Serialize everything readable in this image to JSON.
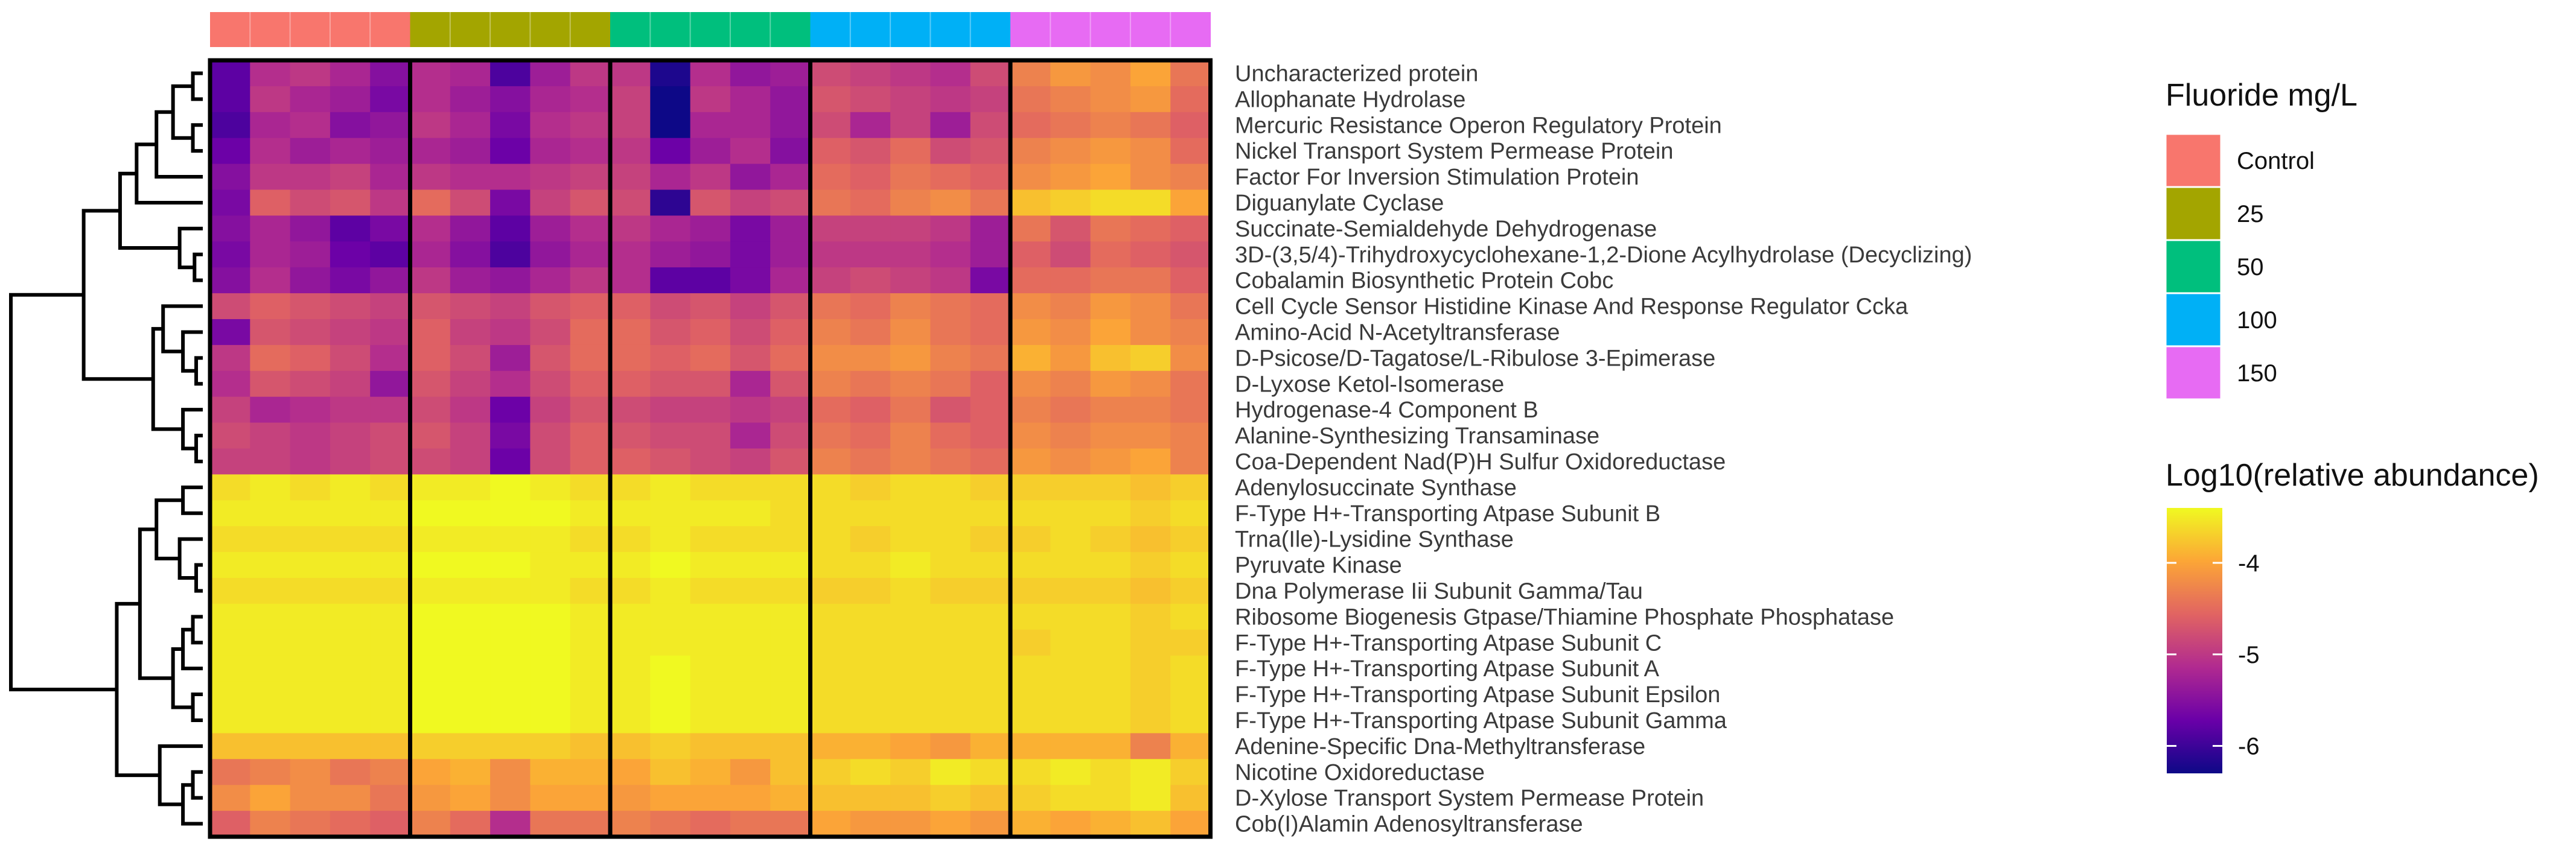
{
  "chart_data": {
    "type": "heatmap",
    "title": "",
    "groups": [
      {
        "name": "Control",
        "color": "#F8766D",
        "columns": 5
      },
      {
        "name": "25",
        "color": "#A3A500",
        "columns": 5
      },
      {
        "name": "50",
        "color": "#00BF7D",
        "columns": 5
      },
      {
        "name": "100",
        "color": "#00B0F6",
        "columns": 5
      },
      {
        "name": "150",
        "color": "#E76BF3",
        "columns": 5
      }
    ],
    "rows": [
      "Uncharacterized protein",
      "Allophanate Hydrolase",
      "Mercuric Resistance Operon Regulatory Protein",
      "Nickel Transport System Permease Protein",
      "Factor For Inversion Stimulation Protein",
      "Diguanylate Cyclase",
      "Succinate-Semialdehyde Dehydrogenase",
      "3D-(3,5/4)-Trihydroxycyclohexane-1,2-Dione Acylhydrolase (Decyclizing)",
      "Cobalamin Biosynthetic Protein Cobc",
      "Cell Cycle Sensor Histidine Kinase And Response Regulator Ccka",
      "Amino-Acid N-Acetyltransferase",
      "D-Psicose/D-Tagatose/L-Ribulose 3-Epimerase",
      "D-Lyxose Ketol-Isomerase",
      "Hydrogenase-4 Component B",
      "Alanine-Synthesizing Transaminase",
      "Coa-Dependent Nad(P)H Sulfur Oxidoreductase",
      "Adenylosuccinate Synthase",
      "F-Type H+-Transporting Atpase Subunit B",
      "Trna(Ile)-Lysidine Synthase",
      "Pyruvate Kinase",
      "Dna Polymerase Iii Subunit Gamma/Tau",
      "Ribosome Biogenesis Gtpase/Thiamine Phosphate Phosphatase",
      "F-Type H+-Transporting Atpase Subunit C",
      "F-Type H+-Transporting Atpase Subunit A",
      "F-Type H+-Transporting Atpase Subunit Epsilon",
      "F-Type H+-Transporting Atpase Subunit Gamma",
      "Adenine-Specific Dna-Methyltransferase",
      "Nicotine Oxidoreductase",
      "D-Xylose Transport System Permease Protein",
      "Cob(I)Alamin Adenosyltransferase"
    ],
    "values": [
      [
        -5.8,
        -5.1,
        -5.0,
        -5.2,
        -5.5,
        -5.1,
        -5.2,
        -5.9,
        -5.3,
        -5.0,
        -5.0,
        -6.2,
        -5.1,
        -5.4,
        -5.3,
        -4.8,
        -4.9,
        -5.0,
        -5.1,
        -4.8,
        -4.3,
        -4.1,
        -4.2,
        -4.0,
        -4.4
      ],
      [
        -5.8,
        -5.0,
        -5.2,
        -5.3,
        -5.6,
        -5.1,
        -5.3,
        -5.5,
        -5.2,
        -5.1,
        -4.9,
        -6.3,
        -5.0,
        -5.2,
        -5.4,
        -4.7,
        -4.8,
        -4.9,
        -5.0,
        -4.9,
        -4.4,
        -4.3,
        -4.2,
        -4.1,
        -4.5
      ],
      [
        -5.9,
        -5.2,
        -5.1,
        -5.5,
        -5.4,
        -5.0,
        -5.2,
        -5.6,
        -5.1,
        -5.0,
        -4.9,
        -6.4,
        -5.2,
        -5.2,
        -5.4,
        -4.8,
        -5.2,
        -4.9,
        -5.3,
        -4.8,
        -4.5,
        -4.4,
        -4.3,
        -4.4,
        -4.6
      ],
      [
        -5.7,
        -5.1,
        -5.3,
        -5.2,
        -5.3,
        -5.2,
        -5.3,
        -5.7,
        -5.2,
        -5.1,
        -5.0,
        -5.7,
        -5.3,
        -5.1,
        -5.5,
        -4.6,
        -4.7,
        -4.5,
        -4.8,
        -4.7,
        -4.3,
        -4.2,
        -4.1,
        -4.2,
        -4.5
      ],
      [
        -5.5,
        -5.0,
        -5.0,
        -4.9,
        -5.2,
        -5.0,
        -5.1,
        -5.1,
        -5.0,
        -4.9,
        -4.9,
        -5.2,
        -5.0,
        -5.4,
        -5.2,
        -4.5,
        -4.6,
        -4.4,
        -4.5,
        -4.6,
        -4.2,
        -4.1,
        -4.0,
        -4.2,
        -4.3
      ],
      [
        -5.6,
        -4.6,
        -4.8,
        -4.7,
        -5.0,
        -4.5,
        -4.8,
        -5.6,
        -4.9,
        -4.7,
        -4.8,
        -6.1,
        -4.7,
        -4.9,
        -4.8,
        -4.4,
        -4.5,
        -4.3,
        -4.2,
        -4.4,
        -3.8,
        -3.7,
        -3.6,
        -3.6,
        -4.0
      ],
      [
        -5.5,
        -5.2,
        -5.4,
        -5.8,
        -5.6,
        -5.1,
        -5.4,
        -5.8,
        -5.3,
        -5.1,
        -5.0,
        -5.2,
        -5.3,
        -5.6,
        -5.3,
        -4.9,
        -4.9,
        -4.9,
        -5.0,
        -5.3,
        -4.4,
        -4.7,
        -4.4,
        -4.5,
        -4.6
      ],
      [
        -5.6,
        -5.2,
        -5.3,
        -5.7,
        -5.8,
        -5.2,
        -5.5,
        -5.9,
        -5.4,
        -5.2,
        -5.1,
        -5.3,
        -5.4,
        -5.6,
        -5.3,
        -5.0,
        -5.0,
        -5.0,
        -5.1,
        -5.3,
        -4.6,
        -4.8,
        -4.5,
        -4.6,
        -4.7
      ],
      [
        -5.5,
        -5.1,
        -5.4,
        -5.6,
        -5.4,
        -5.0,
        -5.3,
        -5.4,
        -5.2,
        -5.0,
        -5.1,
        -5.8,
        -5.8,
        -5.6,
        -5.2,
        -4.9,
        -4.8,
        -4.9,
        -5.0,
        -5.6,
        -4.5,
        -4.5,
        -4.4,
        -4.4,
        -4.6
      ],
      [
        -4.8,
        -4.6,
        -4.7,
        -4.8,
        -4.9,
        -4.7,
        -4.8,
        -4.9,
        -4.7,
        -4.6,
        -4.6,
        -4.8,
        -4.7,
        -4.9,
        -4.7,
        -4.4,
        -4.5,
        -4.3,
        -4.4,
        -4.5,
        -4.2,
        -4.3,
        -4.1,
        -4.2,
        -4.4
      ],
      [
        -5.6,
        -4.7,
        -4.8,
        -4.9,
        -5.0,
        -4.6,
        -4.9,
        -5.0,
        -4.8,
        -4.5,
        -4.5,
        -4.7,
        -4.6,
        -4.8,
        -4.6,
        -4.3,
        -4.4,
        -4.2,
        -4.4,
        -4.5,
        -4.1,
        -4.2,
        -4.0,
        -4.2,
        -4.3
      ],
      [
        -5.0,
        -4.5,
        -4.6,
        -4.8,
        -5.1,
        -4.6,
        -4.8,
        -5.3,
        -4.7,
        -4.5,
        -4.5,
        -4.6,
        -4.5,
        -4.7,
        -4.5,
        -4.2,
        -4.2,
        -4.1,
        -4.3,
        -4.4,
        -3.9,
        -4.1,
        -3.8,
        -3.7,
        -4.2
      ],
      [
        -5.1,
        -4.7,
        -4.8,
        -4.9,
        -5.4,
        -4.7,
        -4.9,
        -5.1,
        -4.8,
        -4.6,
        -4.6,
        -4.7,
        -4.7,
        -5.2,
        -4.7,
        -4.3,
        -4.4,
        -4.3,
        -4.4,
        -4.6,
        -4.2,
        -4.3,
        -4.1,
        -4.2,
        -4.4
      ],
      [
        -4.9,
        -5.2,
        -5.1,
        -5.0,
        -5.0,
        -4.8,
        -5.0,
        -5.7,
        -4.9,
        -4.7,
        -4.8,
        -4.9,
        -4.9,
        -5.0,
        -4.9,
        -4.5,
        -4.6,
        -4.4,
        -4.7,
        -4.6,
        -4.3,
        -4.4,
        -4.3,
        -4.3,
        -4.4
      ],
      [
        -4.8,
        -4.9,
        -5.0,
        -4.9,
        -4.8,
        -4.7,
        -4.9,
        -5.6,
        -4.8,
        -4.6,
        -4.7,
        -4.8,
        -4.8,
        -5.2,
        -4.8,
        -4.4,
        -4.5,
        -4.3,
        -4.5,
        -4.6,
        -4.2,
        -4.3,
        -4.2,
        -4.2,
        -4.3
      ],
      [
        -4.9,
        -4.9,
        -5.0,
        -4.9,
        -4.8,
        -4.8,
        -4.9,
        -5.7,
        -4.8,
        -4.6,
        -4.6,
        -4.7,
        -4.8,
        -4.9,
        -4.7,
        -4.3,
        -4.4,
        -4.3,
        -4.4,
        -4.5,
        -4.1,
        -4.2,
        -4.1,
        -4.0,
        -4.3
      ],
      [
        -3.6,
        -3.5,
        -3.6,
        -3.5,
        -3.6,
        -3.5,
        -3.5,
        -3.4,
        -3.5,
        -3.6,
        -3.6,
        -3.5,
        -3.6,
        -3.6,
        -3.6,
        -3.6,
        -3.7,
        -3.6,
        -3.6,
        -3.7,
        -3.7,
        -3.7,
        -3.7,
        -3.8,
        -3.7
      ],
      [
        -3.5,
        -3.5,
        -3.5,
        -3.5,
        -3.5,
        -3.4,
        -3.4,
        -3.4,
        -3.4,
        -3.5,
        -3.5,
        -3.5,
        -3.5,
        -3.5,
        -3.6,
        -3.6,
        -3.6,
        -3.6,
        -3.6,
        -3.6,
        -3.6,
        -3.6,
        -3.6,
        -3.7,
        -3.6
      ],
      [
        -3.6,
        -3.6,
        -3.6,
        -3.6,
        -3.6,
        -3.5,
        -3.5,
        -3.5,
        -3.5,
        -3.6,
        -3.6,
        -3.5,
        -3.6,
        -3.6,
        -3.6,
        -3.6,
        -3.7,
        -3.6,
        -3.6,
        -3.7,
        -3.7,
        -3.6,
        -3.7,
        -3.8,
        -3.7
      ],
      [
        -3.5,
        -3.5,
        -3.5,
        -3.5,
        -3.5,
        -3.4,
        -3.4,
        -3.4,
        -3.5,
        -3.5,
        -3.5,
        -3.4,
        -3.5,
        -3.5,
        -3.5,
        -3.6,
        -3.6,
        -3.5,
        -3.6,
        -3.6,
        -3.6,
        -3.6,
        -3.6,
        -3.7,
        -3.6
      ],
      [
        -3.6,
        -3.6,
        -3.6,
        -3.6,
        -3.6,
        -3.5,
        -3.5,
        -3.5,
        -3.5,
        -3.6,
        -3.6,
        -3.5,
        -3.6,
        -3.6,
        -3.6,
        -3.7,
        -3.7,
        -3.6,
        -3.7,
        -3.7,
        -3.7,
        -3.7,
        -3.7,
        -3.8,
        -3.7
      ],
      [
        -3.5,
        -3.5,
        -3.5,
        -3.5,
        -3.5,
        -3.4,
        -3.4,
        -3.4,
        -3.4,
        -3.5,
        -3.5,
        -3.5,
        -3.5,
        -3.5,
        -3.5,
        -3.6,
        -3.6,
        -3.6,
        -3.6,
        -3.6,
        -3.6,
        -3.6,
        -3.6,
        -3.7,
        -3.6
      ],
      [
        -3.5,
        -3.5,
        -3.5,
        -3.5,
        -3.5,
        -3.4,
        -3.4,
        -3.4,
        -3.4,
        -3.5,
        -3.5,
        -3.5,
        -3.5,
        -3.5,
        -3.5,
        -3.6,
        -3.6,
        -3.6,
        -3.6,
        -3.6,
        -3.7,
        -3.6,
        -3.6,
        -3.7,
        -3.7
      ],
      [
        -3.5,
        -3.5,
        -3.5,
        -3.5,
        -3.5,
        -3.4,
        -3.4,
        -3.4,
        -3.4,
        -3.5,
        -3.5,
        -3.4,
        -3.5,
        -3.5,
        -3.5,
        -3.6,
        -3.6,
        -3.6,
        -3.6,
        -3.6,
        -3.6,
        -3.6,
        -3.6,
        -3.7,
        -3.6
      ],
      [
        -3.5,
        -3.5,
        -3.5,
        -3.5,
        -3.5,
        -3.4,
        -3.4,
        -3.4,
        -3.4,
        -3.5,
        -3.5,
        -3.4,
        -3.5,
        -3.5,
        -3.5,
        -3.6,
        -3.6,
        -3.6,
        -3.6,
        -3.6,
        -3.6,
        -3.6,
        -3.6,
        -3.7,
        -3.6
      ],
      [
        -3.5,
        -3.5,
        -3.5,
        -3.5,
        -3.5,
        -3.4,
        -3.4,
        -3.4,
        -3.4,
        -3.5,
        -3.5,
        -3.4,
        -3.5,
        -3.5,
        -3.5,
        -3.6,
        -3.6,
        -3.6,
        -3.6,
        -3.6,
        -3.6,
        -3.6,
        -3.6,
        -3.7,
        -3.6
      ],
      [
        -3.8,
        -3.8,
        -3.8,
        -3.8,
        -3.8,
        -3.7,
        -3.7,
        -3.7,
        -3.7,
        -3.8,
        -3.8,
        -3.7,
        -3.8,
        -3.8,
        -3.8,
        -3.9,
        -3.9,
        -4.0,
        -4.1,
        -3.9,
        -3.9,
        -3.9,
        -3.9,
        -4.3,
        -3.9
      ],
      [
        -4.4,
        -4.3,
        -4.2,
        -4.4,
        -4.3,
        -4.0,
        -3.9,
        -4.2,
        -3.9,
        -3.9,
        -4.0,
        -3.8,
        -3.9,
        -4.1,
        -3.8,
        -3.7,
        -3.6,
        -3.7,
        -3.5,
        -3.6,
        -3.6,
        -3.5,
        -3.6,
        -3.5,
        -3.7
      ],
      [
        -4.2,
        -4.0,
        -4.2,
        -4.2,
        -4.4,
        -4.1,
        -4.0,
        -4.2,
        -4.0,
        -4.0,
        -4.1,
        -4.0,
        -4.0,
        -4.0,
        -3.9,
        -3.8,
        -3.8,
        -3.8,
        -3.7,
        -3.8,
        -3.7,
        -3.6,
        -3.6,
        -3.5,
        -3.8
      ],
      [
        -4.6,
        -4.3,
        -4.4,
        -4.5,
        -4.6,
        -4.3,
        -4.5,
        -5.1,
        -4.4,
        -4.4,
        -4.3,
        -4.4,
        -4.5,
        -4.4,
        -4.4,
        -4.0,
        -4.1,
        -4.1,
        -4.0,
        -4.1,
        -3.9,
        -4.0,
        -3.9,
        -3.8,
        -4.0
      ]
    ],
    "color_scale": {
      "title": "Log10(relative abundance)",
      "min": -6.3,
      "max": -3.4,
      "ticks": [
        -4,
        -5,
        -6
      ],
      "tick_labels": [
        "-4",
        "-5",
        "-6"
      ],
      "stops": [
        "#0D0887",
        "#6A00A8",
        "#B12A90",
        "#E16462",
        "#FCA636",
        "#F0F921"
      ]
    },
    "group_legend_title": "Fluoride mg/L",
    "dendrogram": {
      "leaf_order": "rows",
      "merges": [
        {
          "a": 0,
          "b": 1,
          "height": 0.3
        },
        {
          "a": 2,
          "b": 3,
          "height": 0.3
        },
        {
          "a": "m0",
          "b": "m1",
          "height": 0.9
        },
        {
          "a": "m2",
          "b": 4,
          "height": 1.4
        },
        {
          "a": "m3",
          "b": 5,
          "height": 2.0
        },
        {
          "a": 7,
          "b": 8,
          "height": 0.25
        },
        {
          "a": 6,
          "b": "m5",
          "height": 0.7
        },
        {
          "a": "m4",
          "b": "m6",
          "height": 2.5
        },
        {
          "a": 11,
          "b": 12,
          "height": 0.2
        },
        {
          "a": 10,
          "b": "m8",
          "height": 0.6
        },
        {
          "a": 9,
          "b": "m9",
          "height": 1.2
        },
        {
          "a": 14,
          "b": 15,
          "height": 0.2
        },
        {
          "a": 13,
          "b": "m11",
          "height": 0.6
        },
        {
          "a": "m10",
          "b": "m12",
          "height": 1.5
        },
        {
          "a": "m7",
          "b": "m13",
          "height": 3.6
        },
        {
          "a": 16,
          "b": 17,
          "height": 0.6
        },
        {
          "a": 19,
          "b": 20,
          "height": 0.2
        },
        {
          "a": 18,
          "b": "m16",
          "height": 0.7
        },
        {
          "a": "m15",
          "b": "m17",
          "height": 1.4
        },
        {
          "a": 21,
          "b": 22,
          "height": 0.3
        },
        {
          "a": 23,
          "b": "m19",
          "height": 0.6
        },
        {
          "a": 24,
          "b": 25,
          "height": 0.3
        },
        {
          "a": "m20",
          "b": "m21",
          "height": 0.9
        },
        {
          "a": "m18",
          "b": "m22",
          "height": 1.9
        },
        {
          "a": 27,
          "b": 28,
          "height": 0.3
        },
        {
          "a": "m24",
          "b": 29,
          "height": 0.6
        },
        {
          "a": 26,
          "b": "m25",
          "height": 1.3
        },
        {
          "a": "m23",
          "b": "m26",
          "height": 2.6
        },
        {
          "a": "m14",
          "b": "m27",
          "height": 5.8
        }
      ]
    }
  }
}
